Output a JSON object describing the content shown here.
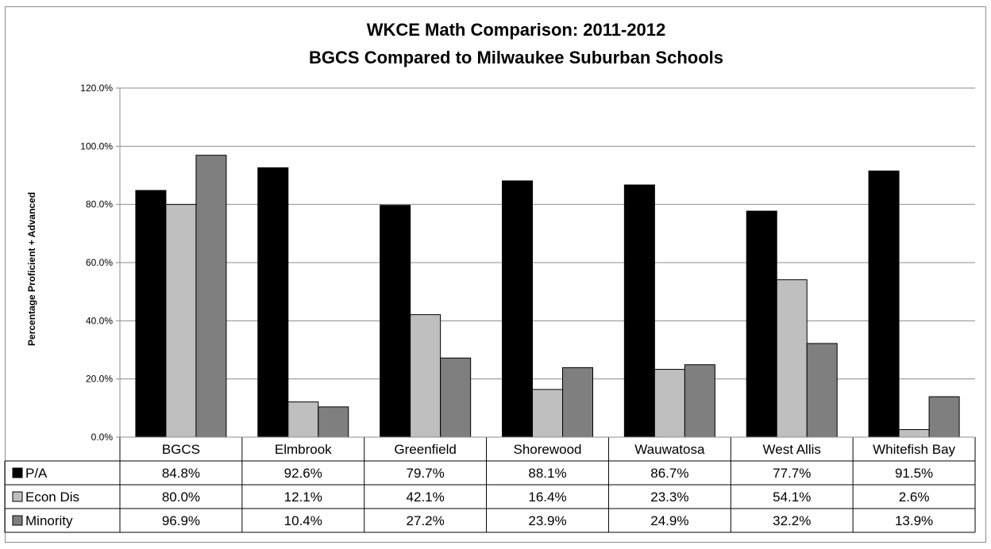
{
  "chart_data": {
    "type": "bar",
    "title": "WKCE Math Comparison: 2011-2012",
    "subtitle": "BGCS Compared to Milwaukee Suburban Schools",
    "xlabel": "",
    "ylabel": "Percentage Proficient + Advanced",
    "ylim": [
      0,
      120
    ],
    "yticks": [
      "0.0%",
      "20.0%",
      "40.0%",
      "60.0%",
      "80.0%",
      "100.0%",
      "120.0%"
    ],
    "ytick_values": [
      0,
      20,
      40,
      60,
      80,
      100,
      120
    ],
    "grid": true,
    "legend": "data-table",
    "categories": [
      "BGCS",
      "Elmbrook",
      "Greenfield",
      "Shorewood",
      "Wauwatosa",
      "West Allis",
      "Whitefish Bay"
    ],
    "series": [
      {
        "name": "P/A",
        "color": "#000000",
        "values": [
          84.8,
          92.6,
          79.7,
          88.1,
          86.7,
          77.7,
          91.5
        ],
        "labels": [
          "84.8%",
          "92.6%",
          "79.7%",
          "88.1%",
          "86.7%",
          "77.7%",
          "91.5%"
        ]
      },
      {
        "name": "Econ Dis",
        "color": "#bfbfbf",
        "values": [
          80.0,
          12.1,
          42.1,
          16.4,
          23.3,
          54.1,
          2.6
        ],
        "labels": [
          "80.0%",
          "12.1%",
          "42.1%",
          "16.4%",
          "23.3%",
          "54.1%",
          "2.6%"
        ]
      },
      {
        "name": "Minority",
        "color": "#7f7f7f",
        "values": [
          96.9,
          10.4,
          27.2,
          23.9,
          24.9,
          32.2,
          13.9
        ],
        "labels": [
          "96.9%",
          "10.4%",
          "27.2%",
          "23.9%",
          "24.9%",
          "32.2%",
          "13.9%"
        ]
      }
    ]
  }
}
